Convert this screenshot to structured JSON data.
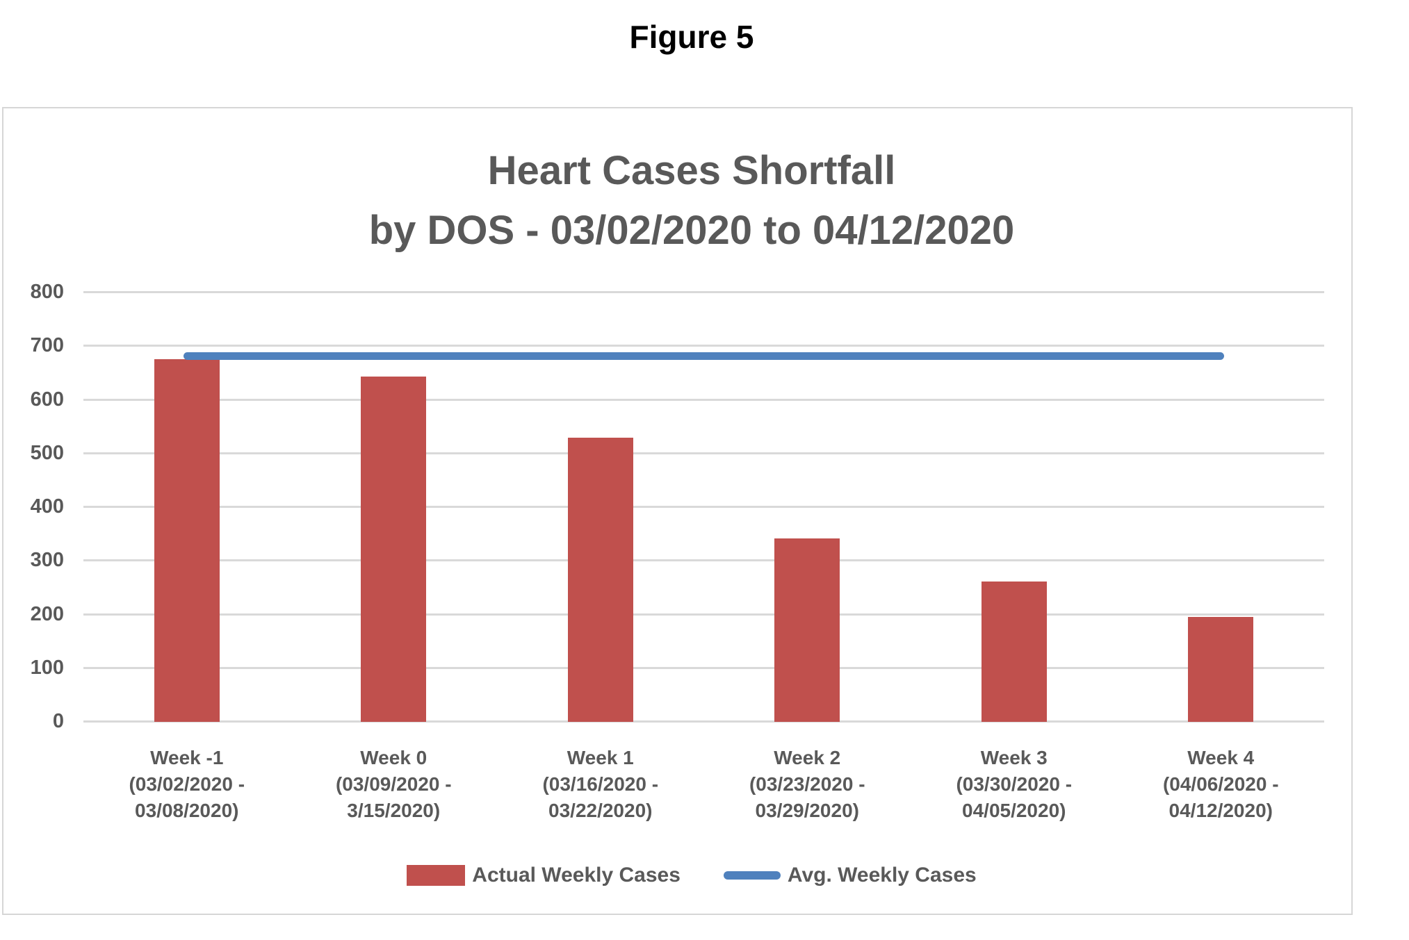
{
  "figure_label": "Figure 5",
  "chart": {
    "title_line1": "Heart Cases Shortfall",
    "title_line2": "by DOS - 03/02/2020 to 04/12/2020"
  },
  "legend": {
    "bars_label": "Actual Weekly Cases",
    "line_label": "Avg. Weekly Cases"
  },
  "colors": {
    "bar": "#c0504d",
    "line": "#4f81bd",
    "text": "#595959",
    "grid": "#d9d9d9",
    "border": "#d6d6d6",
    "caption": "#000000"
  },
  "chart_data": {
    "type": "bar",
    "title": "Heart Cases Shortfall by DOS - 03/02/2020 to 04/12/2020",
    "xlabel": "",
    "ylabel": "",
    "ylim": [
      0,
      800
    ],
    "yticks": [
      0,
      100,
      200,
      300,
      400,
      500,
      600,
      700,
      800
    ],
    "grid": true,
    "legend_position": "bottom",
    "categories": [
      {
        "week": "Week -1",
        "dates": [
          "(03/02/2020 -",
          "03/08/2020)"
        ]
      },
      {
        "week": "Week 0",
        "dates": [
          "(03/09/2020 -",
          "3/15/2020)"
        ]
      },
      {
        "week": "Week 1",
        "dates": [
          "(03/16/2020 -",
          "03/22/2020)"
        ]
      },
      {
        "week": "Week 2",
        "dates": [
          "(03/23/2020 -",
          "03/29/2020)"
        ]
      },
      {
        "week": "Week 3",
        "dates": [
          "(03/30/2020 -",
          "04/05/2020)"
        ]
      },
      {
        "week": "Week 4",
        "dates": [
          "(04/06/2020 -",
          "04/12/2020)"
        ]
      }
    ],
    "series": [
      {
        "name": "Actual Weekly Cases",
        "type": "bar",
        "values": [
          676,
          644,
          530,
          342,
          261,
          195
        ]
      },
      {
        "name": "Avg. Weekly Cases",
        "type": "line",
        "values": [
          681,
          681,
          681,
          681,
          681,
          681
        ]
      }
    ]
  }
}
